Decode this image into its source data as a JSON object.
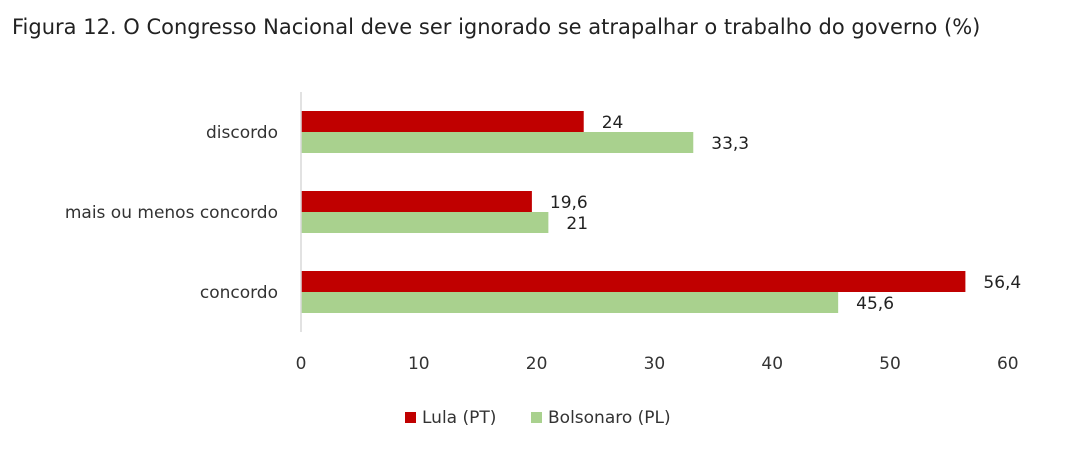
{
  "chart_data": {
    "type": "bar",
    "orientation": "horizontal",
    "title": "Figura 12. O Congresso Nacional deve ser ignorado se atrapalhar o trabalho do governo (%)",
    "categories": [
      "discordo",
      "mais ou menos concordo",
      "concordo"
    ],
    "series": [
      {
        "name": "Lula (PT)",
        "color": "#c00000",
        "values": [
          24,
          19.6,
          56.4
        ],
        "labels": [
          "24",
          "19,6",
          "56,4"
        ]
      },
      {
        "name": "Bolsonaro (PL)",
        "color": "#a9d18e",
        "values": [
          33.3,
          21,
          45.6
        ],
        "labels": [
          "33,3",
          "21",
          "45,6"
        ]
      }
    ],
    "xlim": [
      0,
      60
    ],
    "xticks": [
      0,
      10,
      20,
      30,
      40,
      50,
      60
    ],
    "xlabel": "",
    "ylabel": "",
    "grid": false,
    "legend_position": "bottom"
  }
}
